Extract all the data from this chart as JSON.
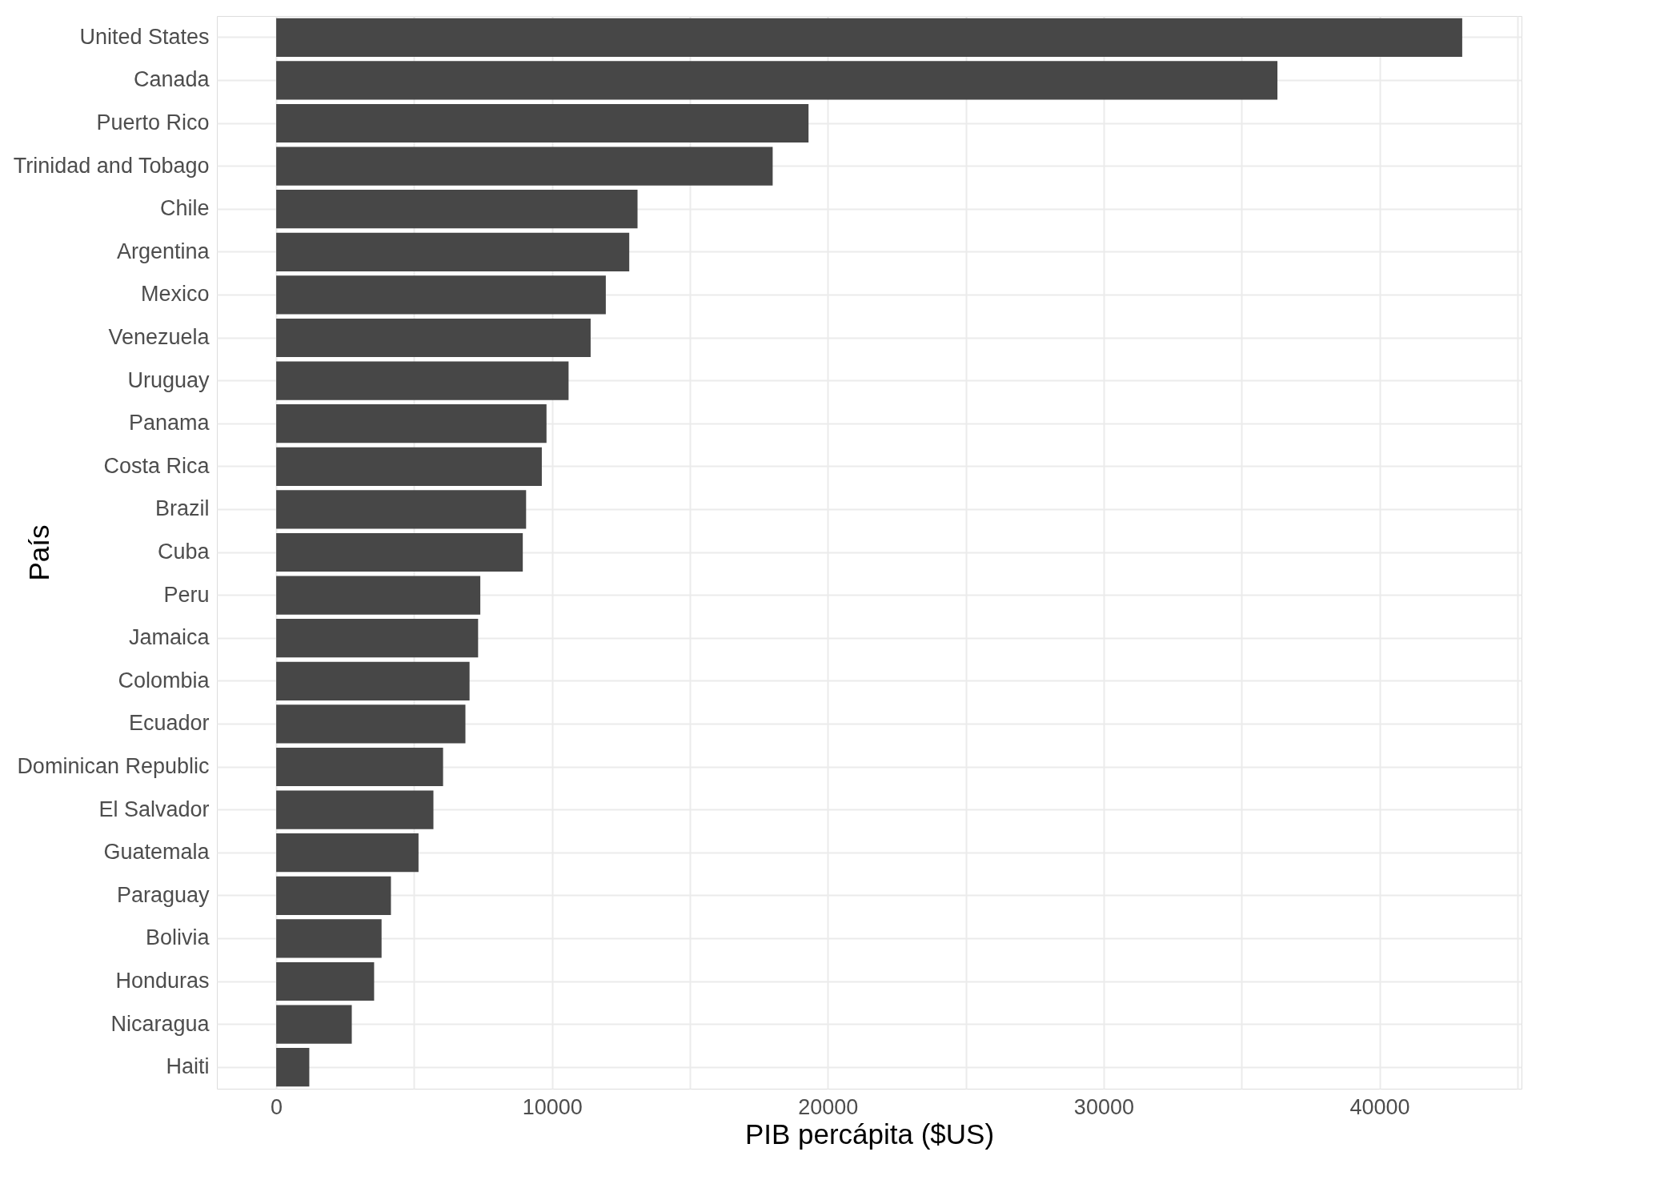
{
  "chart_data": {
    "type": "bar",
    "orientation": "horizontal",
    "xlabel": "PIB percápita ($US)",
    "ylabel": "País",
    "categories": [
      "United States",
      "Canada",
      "Puerto Rico",
      "Trinidad and Tobago",
      "Chile",
      "Argentina",
      "Mexico",
      "Venezuela",
      "Uruguay",
      "Panama",
      "Costa Rica",
      "Brazil",
      "Cuba",
      "Peru",
      "Jamaica",
      "Colombia",
      "Ecuador",
      "Dominican Republic",
      "El Salvador",
      "Guatemala",
      "Paraguay",
      "Bolivia",
      "Honduras",
      "Nicaragua",
      "Haiti"
    ],
    "values": [
      43000,
      36300,
      19300,
      18000,
      13100,
      12800,
      11950,
      11400,
      10600,
      9800,
      9630,
      9060,
      8940,
      7400,
      7320,
      7010,
      6860,
      6050,
      5700,
      5160,
      4160,
      3820,
      3550,
      2740,
      1200
    ],
    "color": "#474747",
    "xlim": [
      -2150,
      45150
    ],
    "xticks": [
      0,
      {
        "value": 5000,
        "label": null
      },
      10000,
      {
        "value": 15000,
        "label": null
      },
      20000,
      {
        "value": 25000,
        "label": null
      },
      30000,
      {
        "value": 35000,
        "label": null
      },
      40000,
      {
        "value": 45000,
        "label": null
      }
    ],
    "grid": true
  }
}
